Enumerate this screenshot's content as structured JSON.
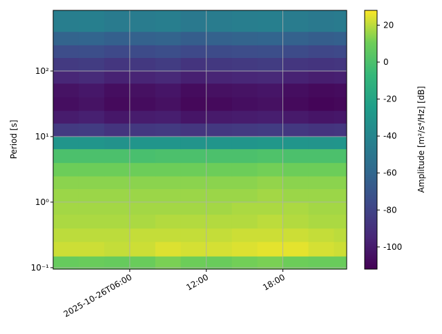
{
  "chart_data": {
    "type": "heatmap",
    "ylabel": "Period [s]",
    "colorbar_label": "Amplitude [m²/s⁴/Hz] [dB]",
    "x_edges": [
      "2025-10-26T00:00",
      "2025-10-26T02:00",
      "2025-10-26T04:00",
      "2025-10-26T06:00",
      "2025-10-26T08:00",
      "2025-10-26T10:00",
      "2025-10-26T12:00",
      "2025-10-26T14:00",
      "2025-10-26T16:00",
      "2025-10-26T18:00",
      "2025-10-26T20:00",
      "2025-10-26T22:00",
      "2025-10-26T23:00"
    ],
    "y_edges": [
      0.095,
      0.15,
      0.25,
      0.4,
      0.65,
      1,
      1.6,
      2.5,
      4,
      6.5,
      10,
      16,
      25,
      40,
      65,
      100,
      160,
      250,
      400,
      843
    ],
    "z": [
      [
        8,
        9,
        8,
        9,
        12,
        10,
        9,
        11,
        12,
        10,
        9,
        9
      ],
      [
        22,
        22,
        21,
        22,
        24,
        23,
        23,
        24,
        25,
        25,
        23,
        22
      ],
      [
        20,
        20,
        20,
        21,
        21,
        21,
        21,
        22,
        22,
        22,
        21,
        20
      ],
      [
        18,
        18,
        18,
        18,
        19,
        19,
        19,
        19,
        20,
        19,
        18,
        18
      ],
      [
        17,
        17,
        17,
        17,
        17,
        17,
        17,
        18,
        18,
        18,
        17,
        17
      ],
      [
        16,
        16,
        16,
        16,
        16,
        16,
        16,
        16,
        17,
        16,
        16,
        16
      ],
      [
        14,
        14,
        14,
        14,
        14,
        14,
        14,
        14,
        15,
        14,
        14,
        14
      ],
      [
        10,
        10,
        10,
        10,
        10,
        10,
        10,
        10,
        11,
        10,
        10,
        10
      ],
      [
        0,
        0,
        0,
        -1,
        0,
        0,
        0,
        0,
        1,
        0,
        0,
        0
      ],
      [
        -30,
        -30,
        -32,
        -30,
        -30,
        -31,
        -30,
        -30,
        -29,
        -30,
        -31,
        -30
      ],
      [
        -85,
        -84,
        -88,
        -86,
        -85,
        -87,
        -86,
        -85,
        -84,
        -86,
        -88,
        -87
      ],
      [
        -100,
        -98,
        -102,
        -100,
        -99,
        -103,
        -101,
        -100,
        -99,
        -101,
        -103,
        -102
      ],
      [
        -106,
        -104,
        -108,
        -107,
        -105,
        -109,
        -108,
        -106,
        -105,
        -108,
        -110,
        -109
      ],
      [
        -104,
        -102,
        -106,
        -105,
        -103,
        -107,
        -105,
        -104,
        -103,
        -106,
        -108,
        -107
      ],
      [
        -95,
        -93,
        -97,
        -96,
        -94,
        -98,
        -96,
        -95,
        -94,
        -97,
        -99,
        -98
      ],
      [
        -85,
        -84,
        -87,
        -86,
        -84,
        -88,
        -86,
        -85,
        -84,
        -87,
        -88,
        -87
      ],
      [
        -75,
        -74,
        -77,
        -76,
        -74,
        -77,
        -76,
        -75,
        -74,
        -76,
        -78,
        -77
      ],
      [
        -62,
        -61,
        -64,
        -63,
        -62,
        -65,
        -63,
        -62,
        -61,
        -63,
        -65,
        -64
      ],
      [
        -45,
        -44,
        -47,
        -46,
        -45,
        -48,
        -46,
        -45,
        -44,
        -46,
        -48,
        -47
      ]
    ],
    "xlim": [
      "2025-10-26T00:00",
      "2025-10-26T23:00"
    ],
    "xticks": [
      "2025-10-26T06:00",
      {
        "value": "2025-10-26T12:00",
        "label": "12:00"
      },
      {
        "value": "2025-10-26T18:00",
        "label": "18:00"
      }
    ],
    "ylim": [
      0.095,
      843
    ],
    "yscale": "log",
    "yticks": [
      {
        "value": 0.1,
        "label": "10⁻¹"
      },
      {
        "value": 1,
        "label": "10⁰"
      },
      {
        "value": 10,
        "label": "10¹"
      },
      {
        "value": 100,
        "label": "10²"
      }
    ],
    "grid": true,
    "colormap": "viridis",
    "clim": [
      -112,
      28
    ],
    "cticks": [
      -100,
      -80,
      -60,
      -40,
      -20,
      0,
      20
    ]
  }
}
